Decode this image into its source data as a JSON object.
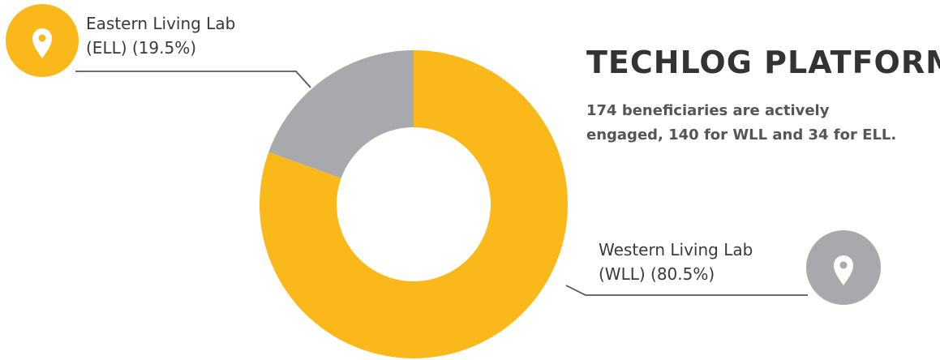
{
  "colors": {
    "ell": "#A8A9AD",
    "wll": "#FBB81A",
    "line": "#555555",
    "pin": "#ffffff"
  },
  "info": {
    "title": "TECHLOG PLATFORM",
    "description_lines": [
      "174 beneficiaries are actively",
      "engaged, 140 for WLL and 34 for ELL."
    ]
  },
  "callouts": {
    "ell": {
      "line1": "Eastern Living Lab",
      "line2": "(ELL) (19.5%)",
      "icon": "map-pin-icon"
    },
    "wll": {
      "line1": "Western Living Lab",
      "line2": "(WLL) (80.5%)",
      "icon": "map-pin-icon"
    }
  },
  "chart_data": {
    "type": "pie",
    "variant": "donut",
    "slices": [
      {
        "label": "Eastern Living Lab (ELL)",
        "value": 19.5,
        "count": 34,
        "color": "#A8A9AD"
      },
      {
        "label": "Western Living Lab (WLL)",
        "value": 80.5,
        "count": 140,
        "color": "#FBB81A"
      }
    ]
  }
}
